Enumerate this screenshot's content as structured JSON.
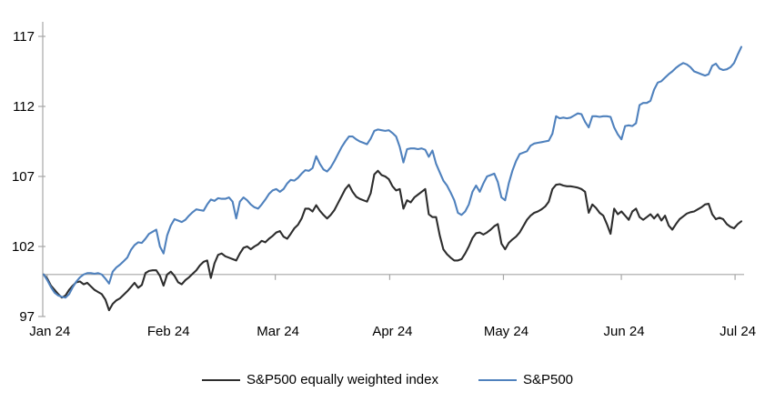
{
  "chart_data": {
    "type": "line",
    "title": "",
    "xlabel": "",
    "ylabel": "",
    "grid": false,
    "legend_position": "bottom",
    "background_color": "#ffffff",
    "axis_color": "#a6a6a6",
    "label_color": "#000000",
    "ylim": [
      97,
      118.1
    ],
    "yticks": [
      97,
      102,
      107,
      112,
      117
    ],
    "baseline_value": 100,
    "x_tick_labels": [
      "Jan 24",
      "Feb 24",
      "Mar 24",
      "Apr 24",
      "May 24",
      "Jun 24",
      "Jul 24"
    ],
    "x_tick_positions": [
      0.005,
      0.175,
      0.332,
      0.496,
      0.659,
      0.828,
      0.991
    ],
    "x_description": "Daily values, evenly spaced, Jan 2024 through early Jul 2024",
    "series": [
      {
        "name": "S&P500 equally weighted index",
        "color": "#2d2d2d",
        "values": [
          100.0,
          99.7,
          99.2,
          98.9,
          98.6,
          98.35,
          98.5,
          98.9,
          99.2,
          99.45,
          99.5,
          99.3,
          99.4,
          99.15,
          98.9,
          98.75,
          98.6,
          98.2,
          97.45,
          97.9,
          98.15,
          98.3,
          98.55,
          98.8,
          99.1,
          99.4,
          99.05,
          99.25,
          100.1,
          100.25,
          100.3,
          100.3,
          99.9,
          99.2,
          100.0,
          100.2,
          99.9,
          99.45,
          99.3,
          99.6,
          99.8,
          100.05,
          100.3,
          100.65,
          100.9,
          101.0,
          99.75,
          100.8,
          101.4,
          101.5,
          101.3,
          101.2,
          101.1,
          101.0,
          101.5,
          101.9,
          102.0,
          101.8,
          102.0,
          102.15,
          102.4,
          102.3,
          102.55,
          102.75,
          103.0,
          103.1,
          102.7,
          102.55,
          102.9,
          103.3,
          103.55,
          104.0,
          104.7,
          104.7,
          104.5,
          104.95,
          104.55,
          104.25,
          104.0,
          104.25,
          104.6,
          105.1,
          105.6,
          106.1,
          106.4,
          105.9,
          105.55,
          105.4,
          105.3,
          105.2,
          105.8,
          107.15,
          107.4,
          107.1,
          107.0,
          106.8,
          106.3,
          106.0,
          106.1,
          104.7,
          105.3,
          105.15,
          105.5,
          105.7,
          105.9,
          106.1,
          104.3,
          104.1,
          104.1,
          102.8,
          101.8,
          101.45,
          101.2,
          101.0,
          101.0,
          101.1,
          101.5,
          102.0,
          102.6,
          102.95,
          103.0,
          102.85,
          103.0,
          103.2,
          103.45,
          103.6,
          102.2,
          101.8,
          102.25,
          102.5,
          102.7,
          103.0,
          103.45,
          103.9,
          104.2,
          104.4,
          104.5,
          104.65,
          104.85,
          105.2,
          106.1,
          106.4,
          106.45,
          106.35,
          106.3,
          106.3,
          106.25,
          106.2,
          106.1,
          105.9,
          104.4,
          105.0,
          104.75,
          104.4,
          104.2,
          103.6,
          102.9,
          104.7,
          104.3,
          104.5,
          104.2,
          103.9,
          104.5,
          104.7,
          104.1,
          103.9,
          104.1,
          104.3,
          104.0,
          104.3,
          103.85,
          104.2,
          103.5,
          103.2,
          103.6,
          103.95,
          104.15,
          104.35,
          104.45,
          104.5,
          104.65,
          104.8,
          105.0,
          105.05,
          104.3,
          103.95,
          104.05,
          103.95,
          103.6,
          103.4,
          103.3,
          103.6,
          103.8
        ]
      },
      {
        "name": "S&P500",
        "color": "#4f81bd",
        "values": [
          100.0,
          99.6,
          99.1,
          98.7,
          98.5,
          98.4,
          98.35,
          98.6,
          99.1,
          99.5,
          99.8,
          100.0,
          100.1,
          100.1,
          100.05,
          100.1,
          100.0,
          99.7,
          99.35,
          100.2,
          100.5,
          100.7,
          100.95,
          101.2,
          101.75,
          102.1,
          102.3,
          102.25,
          102.55,
          102.9,
          103.05,
          103.2,
          102.0,
          101.5,
          102.8,
          103.5,
          103.95,
          103.85,
          103.75,
          103.9,
          104.2,
          104.45,
          104.65,
          104.6,
          104.55,
          105.0,
          105.35,
          105.25,
          105.45,
          105.4,
          105.4,
          105.5,
          105.2,
          104.0,
          105.2,
          105.5,
          105.3,
          105.0,
          104.8,
          104.7,
          105.0,
          105.35,
          105.75,
          106.0,
          106.1,
          105.9,
          106.1,
          106.5,
          106.75,
          106.7,
          106.9,
          107.2,
          107.45,
          107.4,
          107.6,
          108.45,
          107.9,
          107.5,
          107.35,
          107.65,
          108.1,
          108.6,
          109.1,
          109.5,
          109.85,
          109.85,
          109.65,
          109.5,
          109.4,
          109.3,
          109.7,
          110.25,
          110.35,
          110.3,
          110.25,
          110.3,
          110.1,
          109.85,
          109.1,
          108.0,
          108.95,
          109.0,
          109.0,
          108.95,
          109.0,
          108.9,
          108.4,
          108.85,
          107.9,
          107.3,
          106.7,
          106.35,
          105.85,
          105.3,
          104.4,
          104.25,
          104.5,
          105.0,
          105.9,
          106.35,
          105.9,
          106.5,
          107.0,
          107.1,
          107.2,
          106.6,
          105.5,
          105.3,
          106.5,
          107.4,
          108.1,
          108.6,
          108.7,
          108.8,
          109.2,
          109.35,
          109.4,
          109.45,
          109.5,
          109.55,
          110.05,
          111.3,
          111.15,
          111.2,
          111.15,
          111.2,
          111.35,
          111.5,
          111.45,
          110.9,
          110.5,
          111.3,
          111.3,
          111.25,
          111.3,
          111.3,
          111.25,
          110.5,
          110.0,
          109.65,
          110.6,
          110.65,
          110.6,
          110.8,
          112.1,
          112.25,
          112.25,
          112.4,
          113.2,
          113.7,
          113.8,
          114.05,
          114.3,
          114.5,
          114.75,
          114.95,
          115.1,
          115.0,
          114.8,
          114.5,
          114.4,
          114.3,
          114.2,
          114.3,
          114.9,
          115.05,
          114.7,
          114.6,
          114.65,
          114.8,
          115.1,
          115.7,
          116.25
        ]
      }
    ]
  }
}
